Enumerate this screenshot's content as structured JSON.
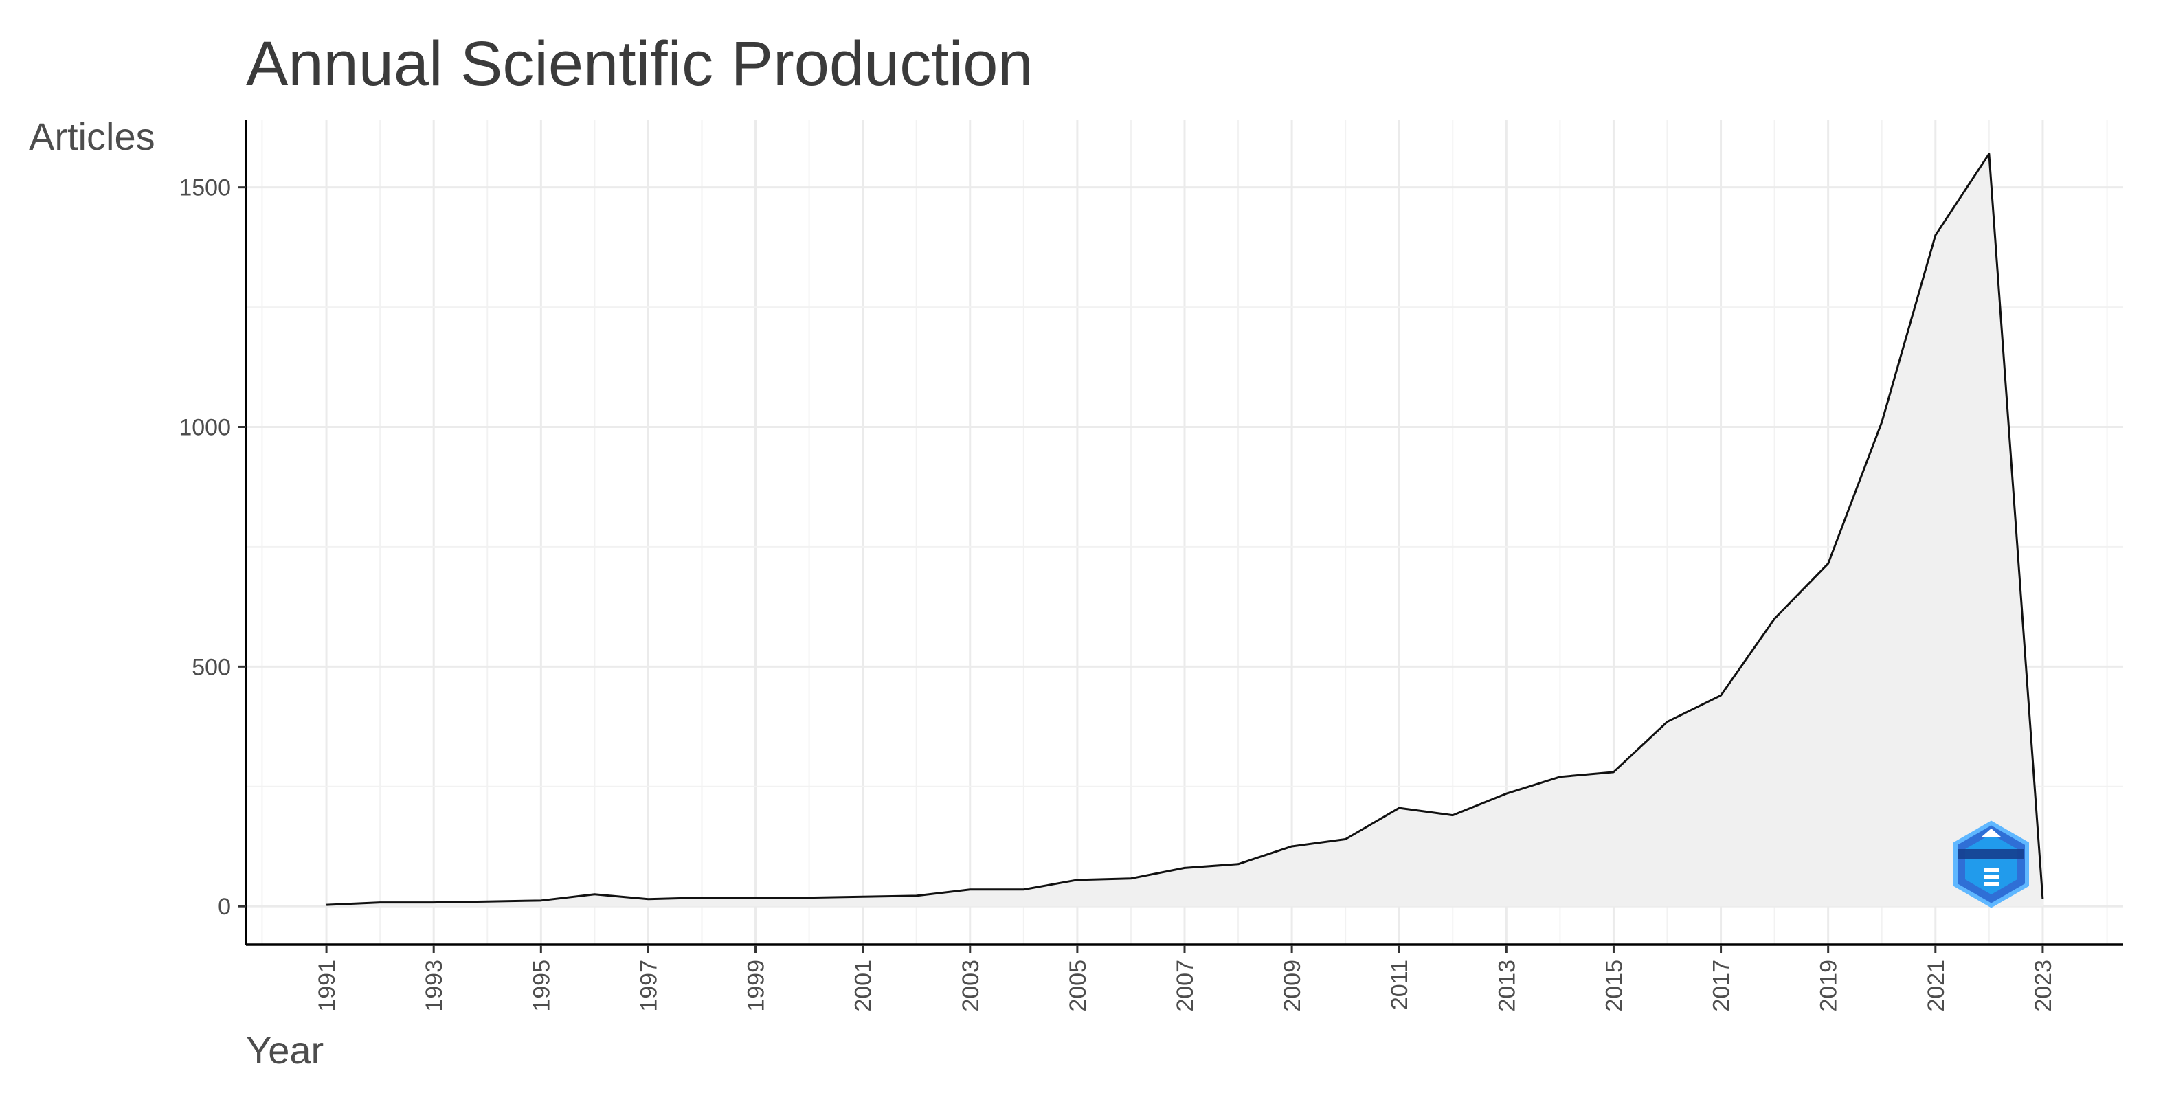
{
  "chart_data": {
    "type": "area",
    "title": "Annual Scientific Production",
    "xlabel": "Year",
    "ylabel": "Articles",
    "x": [
      1991,
      1992,
      1993,
      1994,
      1995,
      1996,
      1997,
      1998,
      1999,
      2000,
      2001,
      2002,
      2003,
      2004,
      2005,
      2006,
      2007,
      2008,
      2009,
      2010,
      2011,
      2012,
      2013,
      2014,
      2015,
      2016,
      2017,
      2018,
      2019,
      2020,
      2021,
      2022,
      2023
    ],
    "series": [
      {
        "name": "Articles",
        "values": [
          3,
          8,
          8,
          10,
          12,
          25,
          15,
          18,
          18,
          18,
          20,
          22,
          35,
          35,
          55,
          58,
          80,
          88,
          125,
          140,
          205,
          190,
          235,
          270,
          280,
          385,
          440,
          600,
          715,
          1010,
          1400,
          1570,
          15
        ]
      }
    ],
    "x_ticks": [
      "1991",
      "1993",
      "1995",
      "1997",
      "1999",
      "2001",
      "2003",
      "2005",
      "2007",
      "2009",
      "2011",
      "2013",
      "2015",
      "2017",
      "2019",
      "2021",
      "2023"
    ],
    "y_ticks": [
      "0",
      "500",
      "1000",
      "1500"
    ],
    "xlim": [
      1989.5,
      2024.5
    ],
    "ylim": [
      -80,
      1640
    ],
    "colors": {
      "area_fill": "#f0f0f0",
      "line": "#111111"
    },
    "watermark": "BIBLIOMETRIX"
  }
}
